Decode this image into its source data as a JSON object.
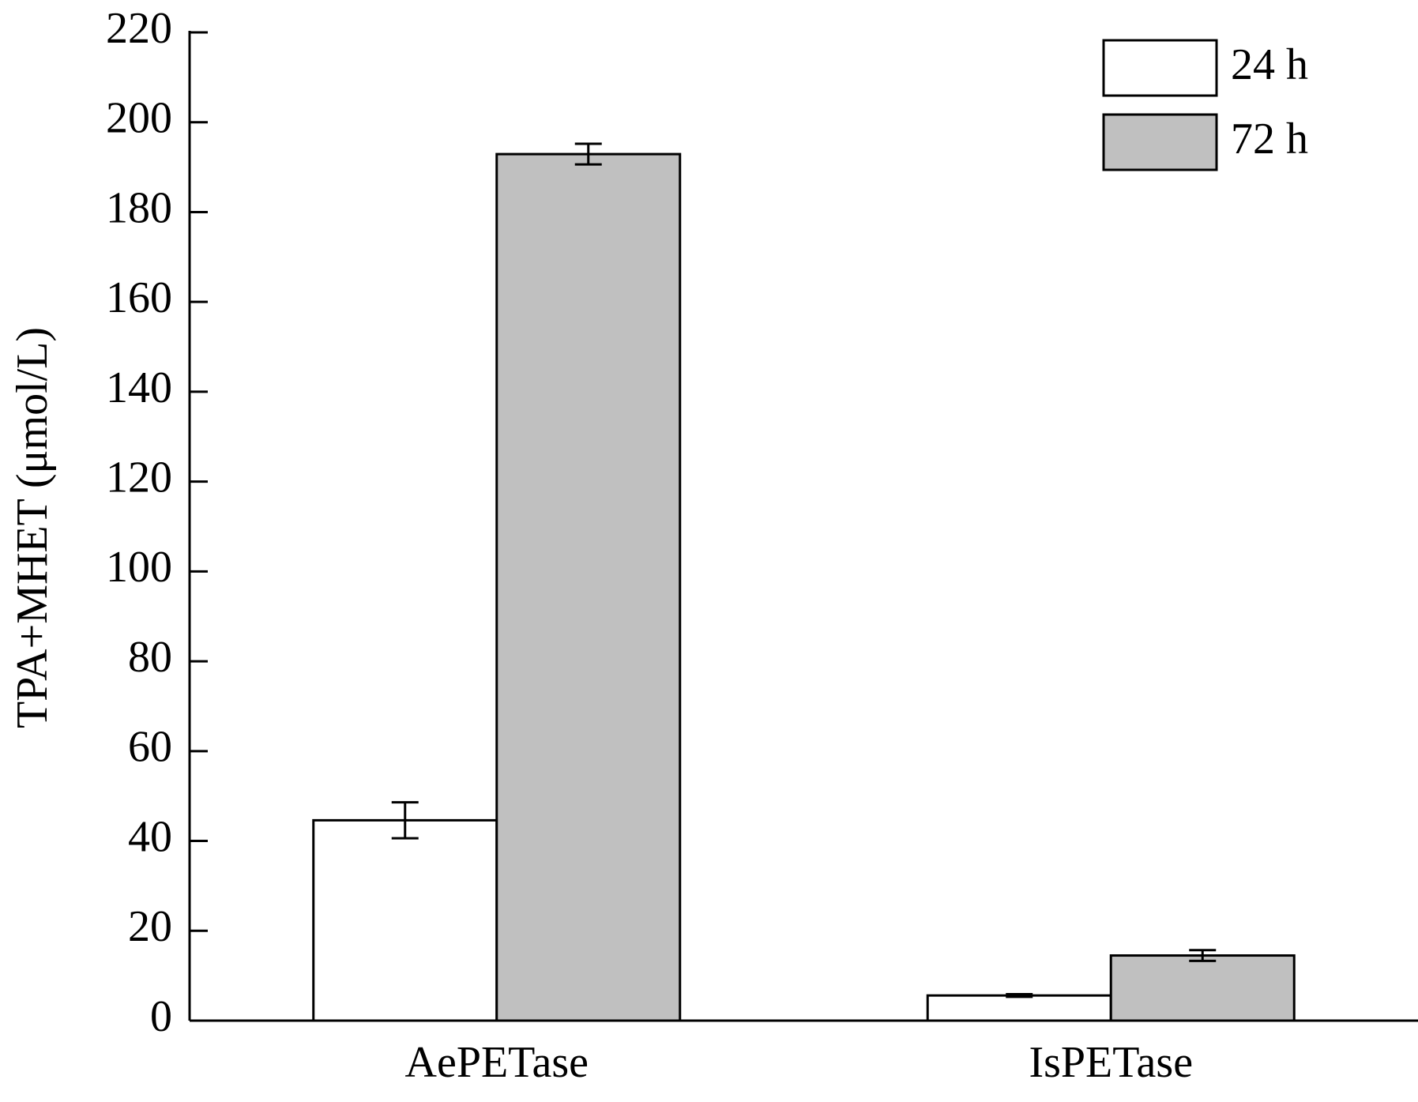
{
  "chart_data": {
    "type": "bar",
    "y_label": "TPA+MHET (μmol/L)",
    "categories": [
      "AePETase",
      "IsPETase"
    ],
    "series": [
      {
        "name": "24 h",
        "color": "#ffffff",
        "values": [
          44.6,
          5.6
        ],
        "errors": [
          4,
          0.3
        ]
      },
      {
        "name": "72 h",
        "color": "#c0c0c0",
        "values": [
          192.9,
          14.5
        ],
        "errors": [
          2.3,
          1.2
        ]
      }
    ],
    "ylim": [
      0,
      220
    ],
    "yticks": [
      0,
      20,
      40,
      60,
      80,
      100,
      120,
      140,
      160,
      180,
      200,
      220
    ],
    "grid": false,
    "legend": "upper right"
  }
}
